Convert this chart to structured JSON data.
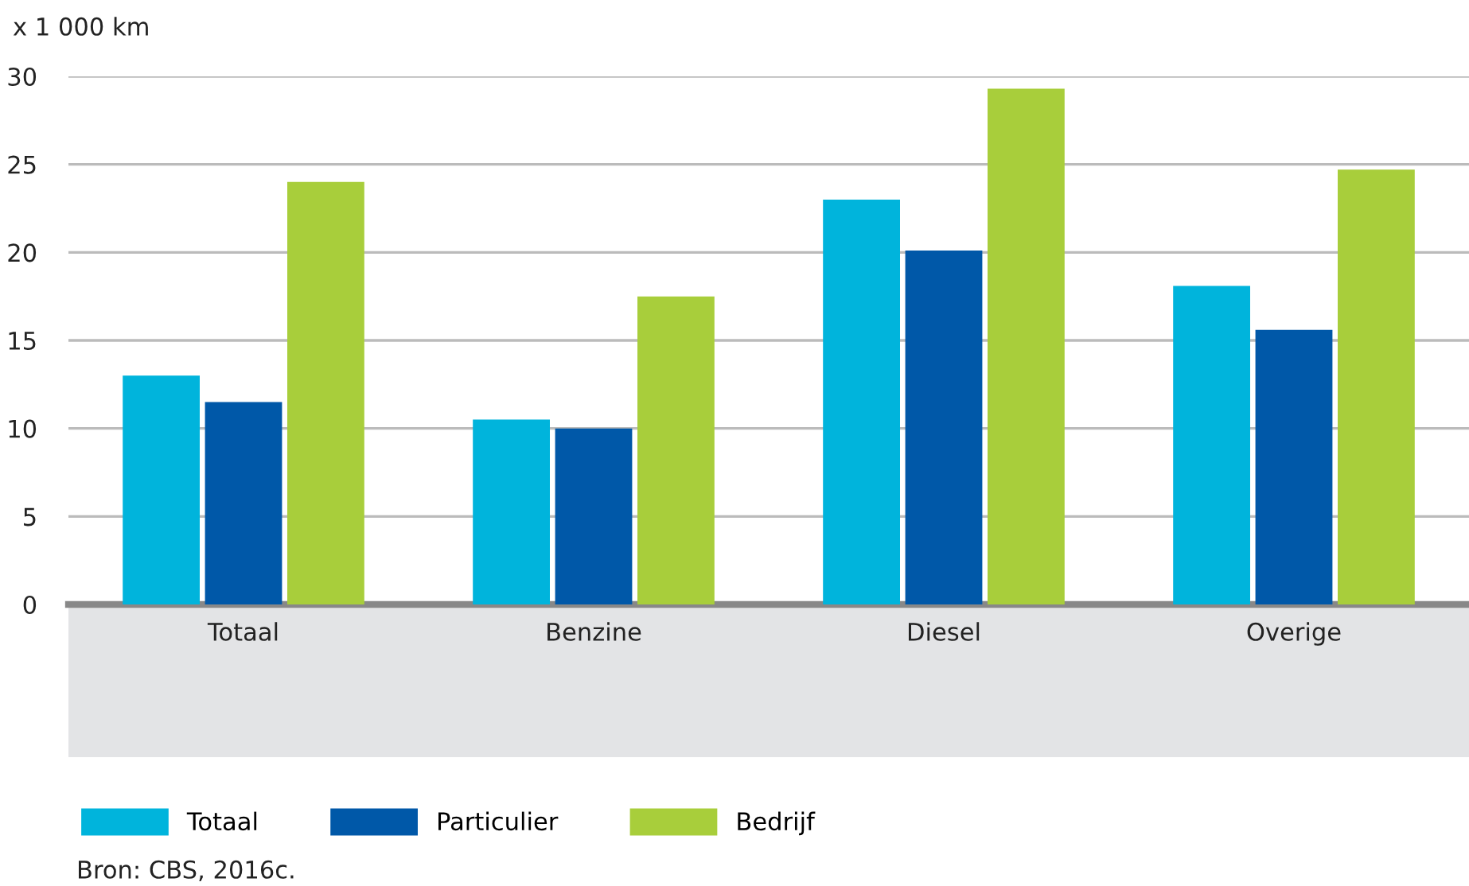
{
  "chart_data": {
    "type": "bar",
    "ylabel": "x 1 000 km",
    "categories": [
      "Totaal",
      "Benzine",
      "Diesel",
      "Overige"
    ],
    "series": [
      {
        "name": "Totaal",
        "color": "#00b4dc",
        "values": [
          13.0,
          10.5,
          23.0,
          18.1
        ]
      },
      {
        "name": "Particulier",
        "color": "#0058a8",
        "values": [
          11.5,
          10.0,
          20.1,
          15.6
        ]
      },
      {
        "name": "Bedrijf",
        "color": "#a8ce3b",
        "values": [
          24.0,
          17.5,
          29.3,
          24.7
        ]
      }
    ],
    "ylim": [
      0,
      30
    ],
    "yticks": [
      0,
      5,
      10,
      15,
      20,
      25,
      30
    ],
    "grid": "y",
    "legend": "bottom",
    "annotations": [
      "Bron: CBS, 2016c."
    ]
  }
}
